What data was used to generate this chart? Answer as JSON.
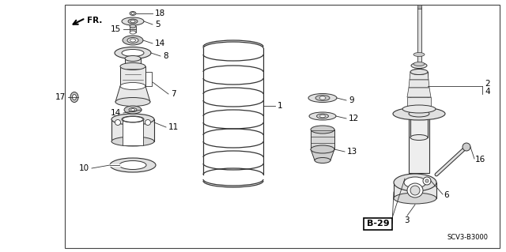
{
  "bg_color": "#ffffff",
  "lc": "#333333",
  "lc2": "#555555",
  "b29_text": "B-29",
  "scv_text": "SCV3-B3000",
  "fs": 7.5
}
